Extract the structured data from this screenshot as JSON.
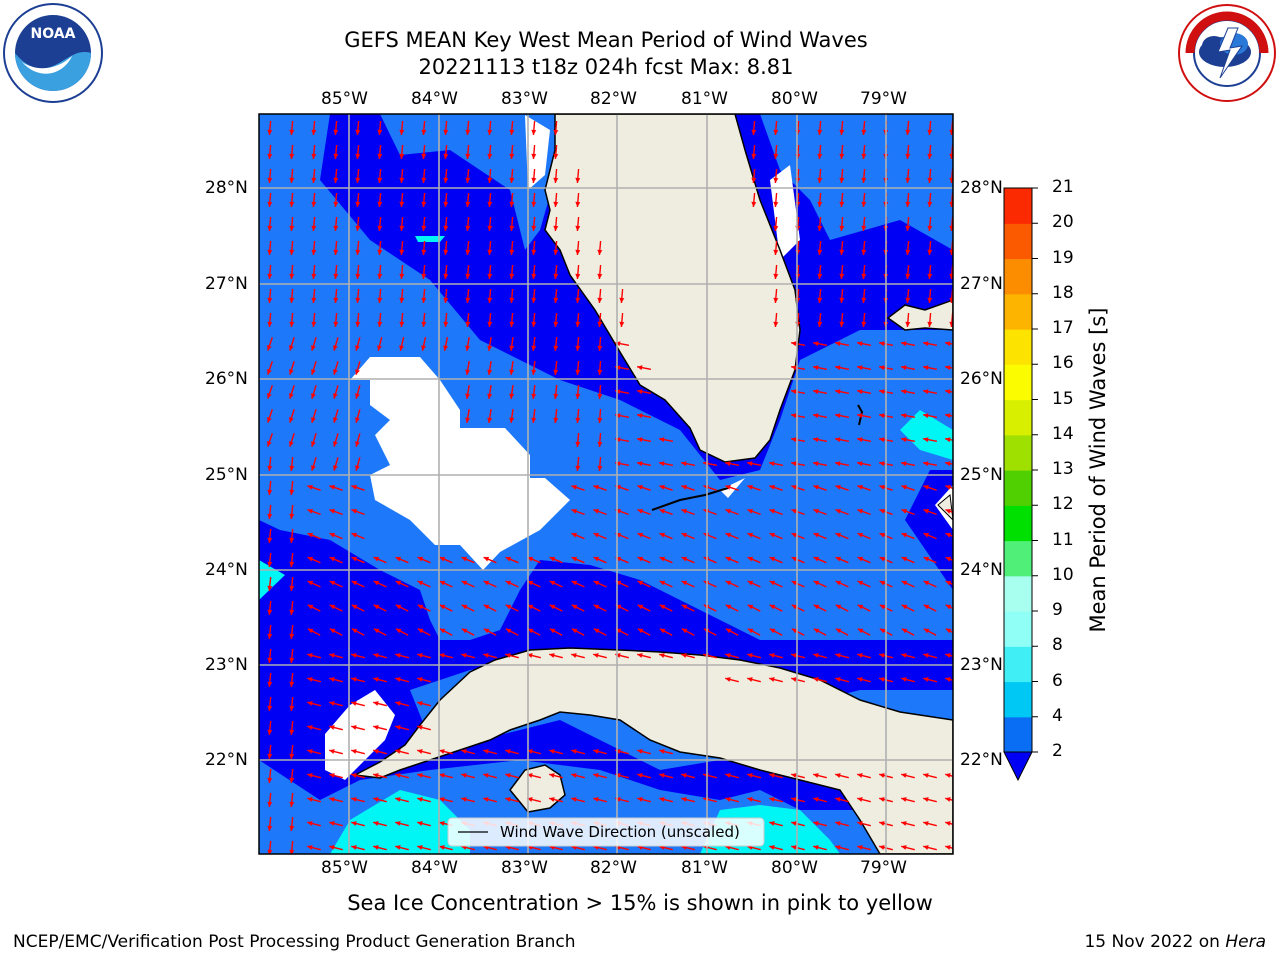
{
  "title_line1": "GEFS MEAN Key West Mean Period of Wind Waves",
  "title_line2": "20221113 t18z 024h fcst   Max: 8.81",
  "lon_labels": [
    "85°W",
    "84°W",
    "83°W",
    "82°W",
    "81°W",
    "80°W",
    "79°W"
  ],
  "lat_labels": [
    "28°N",
    "27°N",
    "26°N",
    "25°N",
    "24°N",
    "23°N",
    "22°N"
  ],
  "legend_label": "Wind Wave Direction (unscaled)",
  "colorbar": {
    "title": "Mean Period of Wind Waves [s]",
    "ticks": [
      "2",
      "4",
      "6",
      "8",
      "9",
      "10",
      "11",
      "12",
      "13",
      "14",
      "15",
      "16",
      "17",
      "18",
      "19",
      "20",
      "21"
    ],
    "colors": [
      "#0a6ef5",
      "#00c8f5",
      "#40eef5",
      "#90fff5",
      "#a8fff0",
      "#50f078",
      "#00e000",
      "#50d000",
      "#a0e000",
      "#d8f000",
      "#fcfc00",
      "#fce400",
      "#fcb400",
      "#fc8c00",
      "#fc5a00",
      "#fc2a00"
    ]
  },
  "map_colors": {
    "deep": "#0000f5",
    "mid": "#1e78fa",
    "light": "#00f5f5",
    "land": "#eeede0",
    "arrow": "#ff0000"
  },
  "subcaption": "Sea Ice Concentration > 15% is shown in pink to yellow",
  "footer_left": "NCEP/EMC/Verification Post Processing Product Generation Branch",
  "footer_right_date": "15 Nov 2022 on ",
  "footer_right_host": "Hera",
  "logo_left_text": "NOAA",
  "logo_right_text": "NATIONAL WEATHER SERVICE"
}
